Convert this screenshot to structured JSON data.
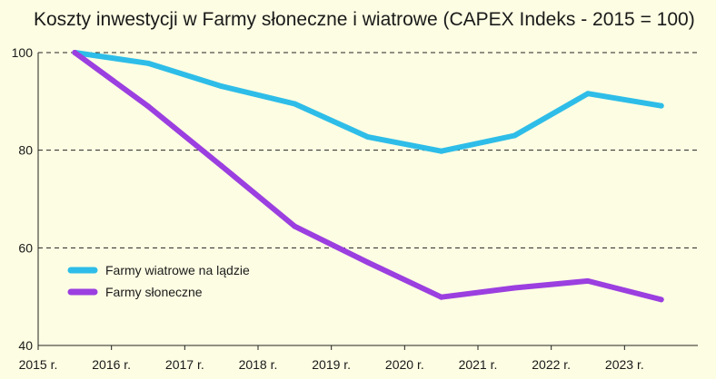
{
  "chart_data": {
    "type": "line",
    "title": "Koszty inwestycji w Farmy słoneczne i wiatrowe (CAPEX Indeks - 2015 = 100)",
    "xlabel": "",
    "ylabel": "",
    "x": [
      2015.5,
      2016.5,
      2017.5,
      2018.5,
      2019.5,
      2020.5,
      2021.5,
      2022.5,
      2023.5
    ],
    "x_tick_labels": [
      "2015 r.",
      "2016 r.",
      "2017 r.",
      "2018 r.",
      "2019 r.",
      "2020 r.",
      "2021 r.",
      "2022 r.",
      "2023 r."
    ],
    "x_ticks": [
      2015,
      2016,
      2017,
      2018,
      2019,
      2020,
      2021,
      2022,
      2023
    ],
    "xlim": [
      2015,
      2024
    ],
    "ylim": [
      40,
      100
    ],
    "y_ticks": [
      40,
      60,
      80,
      100
    ],
    "grid": "horizontal dashed",
    "legend_position": "left",
    "series": [
      {
        "name": "Farmy wiatrowe na lądzie",
        "color": "#2ebde8",
        "values": [
          100,
          97.8,
          93.1,
          89.5,
          82.7,
          79.8,
          83.0,
          91.6,
          89.1
        ]
      },
      {
        "name": "Farmy słoneczne",
        "color": "#9b3fe0",
        "values": [
          100,
          89.0,
          76.8,
          64.4,
          57.0,
          49.9,
          51.8,
          53.2,
          49.4
        ]
      }
    ]
  }
}
